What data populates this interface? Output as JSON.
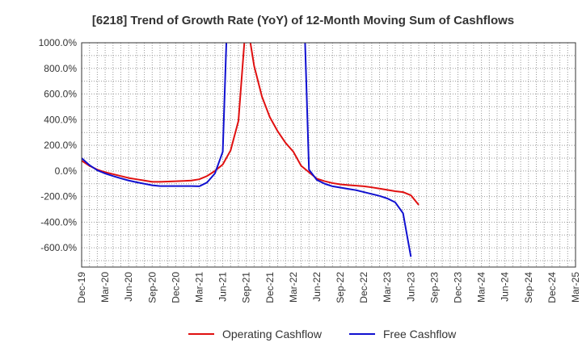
{
  "chart_data": {
    "type": "line",
    "title": "[6218]  Trend of Growth Rate (YoY) of 12-Month Moving Sum of Cashflows",
    "xlabel": "",
    "ylabel": "",
    "ylim": [
      -750,
      1000
    ],
    "yticks": [
      1000,
      800,
      600,
      400,
      200,
      0,
      -200,
      -400,
      -600
    ],
    "ytick_labels": [
      "1000.0%",
      "800.0%",
      "600.0%",
      "400.0%",
      "200.0%",
      "0.0%",
      "-200.0%",
      "-400.0%",
      "-600.0%"
    ],
    "xlim": [
      "2019-12",
      "2025-03"
    ],
    "xtick_labels": [
      "Dec-19",
      "Mar-20",
      "Jun-20",
      "Sep-20",
      "Dec-20",
      "Mar-21",
      "Jun-21",
      "Sep-21",
      "Dec-21",
      "Mar-22",
      "Jun-22",
      "Sep-22",
      "Dec-22",
      "Mar-23",
      "Jun-23",
      "Sep-23",
      "Dec-23",
      "Mar-24",
      "Jun-24",
      "Sep-24",
      "Dec-24",
      "Mar-25"
    ],
    "grid": true,
    "legend_position": "bottom",
    "series": [
      {
        "name": "Operating Cashflow",
        "color": "#e01010",
        "points": [
          [
            "2019-12",
            80
          ],
          [
            "2020-01",
            40
          ],
          [
            "2020-02",
            10
          ],
          [
            "2020-03",
            -10
          ],
          [
            "2020-04",
            -25
          ],
          [
            "2020-05",
            -40
          ],
          [
            "2020-06",
            -55
          ],
          [
            "2020-07",
            -65
          ],
          [
            "2020-08",
            -75
          ],
          [
            "2020-09",
            -85
          ],
          [
            "2020-10",
            -85
          ],
          [
            "2020-11",
            -83
          ],
          [
            "2020-12",
            -80
          ],
          [
            "2021-01",
            -78
          ],
          [
            "2021-02",
            -75
          ],
          [
            "2021-03",
            -65
          ],
          [
            "2021-04",
            -40
          ],
          [
            "2021-05",
            0
          ],
          [
            "2021-06",
            50
          ],
          [
            "2021-07",
            160
          ],
          [
            "2021-08",
            390
          ],
          [
            "2021-09",
            1200
          ],
          [
            "2021-10",
            820
          ],
          [
            "2021-11",
            580
          ],
          [
            "2021-12",
            420
          ],
          [
            "2022-01",
            310
          ],
          [
            "2022-02",
            220
          ],
          [
            "2022-03",
            150
          ],
          [
            "2022-04",
            40
          ],
          [
            "2022-05",
            -10
          ],
          [
            "2022-06",
            -60
          ],
          [
            "2022-07",
            -80
          ],
          [
            "2022-08",
            -95
          ],
          [
            "2022-09",
            -105
          ],
          [
            "2022-10",
            -110
          ],
          [
            "2022-11",
            -115
          ],
          [
            "2022-12",
            -120
          ],
          [
            "2023-01",
            -128
          ],
          [
            "2023-02",
            -138
          ],
          [
            "2023-03",
            -148
          ],
          [
            "2023-04",
            -158
          ],
          [
            "2023-05",
            -165
          ],
          [
            "2023-06",
            -190
          ],
          [
            "2023-07",
            -265
          ]
        ]
      },
      {
        "name": "Free Cashflow",
        "color": "#1010d0",
        "points": [
          [
            "2019-12",
            100
          ],
          [
            "2020-01",
            45
          ],
          [
            "2020-02",
            5
          ],
          [
            "2020-03",
            -20
          ],
          [
            "2020-04",
            -40
          ],
          [
            "2020-05",
            -58
          ],
          [
            "2020-06",
            -75
          ],
          [
            "2020-07",
            -88
          ],
          [
            "2020-08",
            -100
          ],
          [
            "2020-09",
            -112
          ],
          [
            "2020-10",
            -118
          ],
          [
            "2020-11",
            -118
          ],
          [
            "2020-12",
            -118
          ],
          [
            "2021-01",
            -118
          ],
          [
            "2021-02",
            -118
          ],
          [
            "2021-03",
            -120
          ],
          [
            "2021-04",
            -90
          ],
          [
            "2021-05",
            -20
          ],
          [
            "2021-06",
            150
          ],
          [
            "2021-07",
            2000
          ],
          [
            "2022-04",
            2000
          ],
          [
            "2022-05",
            10
          ],
          [
            "2022-06",
            -70
          ],
          [
            "2022-07",
            -100
          ],
          [
            "2022-08",
            -120
          ],
          [
            "2022-09",
            -130
          ],
          [
            "2022-10",
            -140
          ],
          [
            "2022-11",
            -150
          ],
          [
            "2022-12",
            -165
          ],
          [
            "2023-01",
            -180
          ],
          [
            "2023-02",
            -195
          ],
          [
            "2023-03",
            -215
          ],
          [
            "2023-04",
            -245
          ],
          [
            "2023-05",
            -330
          ],
          [
            "2023-06",
            -670
          ]
        ]
      }
    ]
  }
}
